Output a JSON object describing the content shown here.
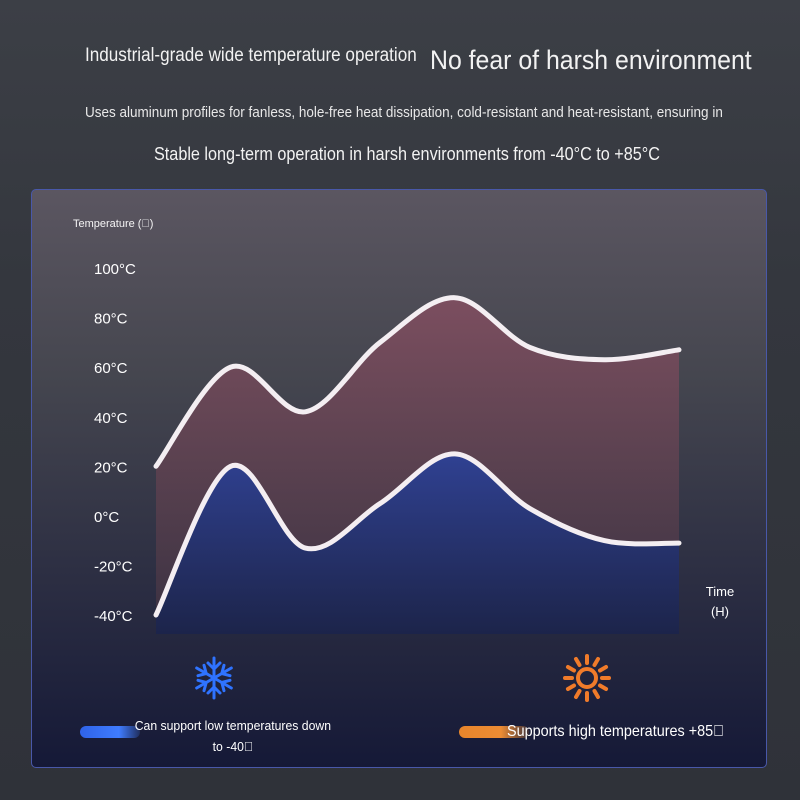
{
  "header": {
    "title_left": "Industrial-grade wide temperature operation",
    "title_right": "No fear of harsh environment",
    "description": "Uses aluminum profiles for fanless, hole-free heat dissipation, cold-resistant and heat-resistant, ensuring in",
    "stable_text": "Stable long-term operation in harsh environments from -40°C to +85°C"
  },
  "chart_data": {
    "type": "area",
    "ylabel": "Temperature (\u0000)",
    "xlabel": "Time\n(H)",
    "y_ticks": [
      "100°C",
      "80°C",
      "60°C",
      "40°C",
      "20°C",
      "0°C",
      "-20°C",
      "-40°C"
    ],
    "ylim": [
      -40,
      100
    ],
    "x": [
      0,
      1,
      2,
      3,
      4,
      5,
      6,
      7
    ],
    "series": [
      {
        "name": "",
        "values": [
          20,
          60,
          42,
          70,
          88,
          68,
          63,
          67
        ],
        "color": "#7a4a5b"
      },
      {
        "name": "",
        "values": [
          -40,
          20,
          -13,
          5,
          25,
          3,
          -10,
          -11
        ],
        "color": "#233686"
      }
    ],
    "grid": true,
    "legend": [
      {
        "label": "Can support low temperatures down to -40\u0000",
        "color": "#2f63e8",
        "icon": "snowflake-icon"
      },
      {
        "label": "Supports high temperatures +85\u0000",
        "color": "#e8852b",
        "icon": "sun-icon"
      }
    ]
  }
}
